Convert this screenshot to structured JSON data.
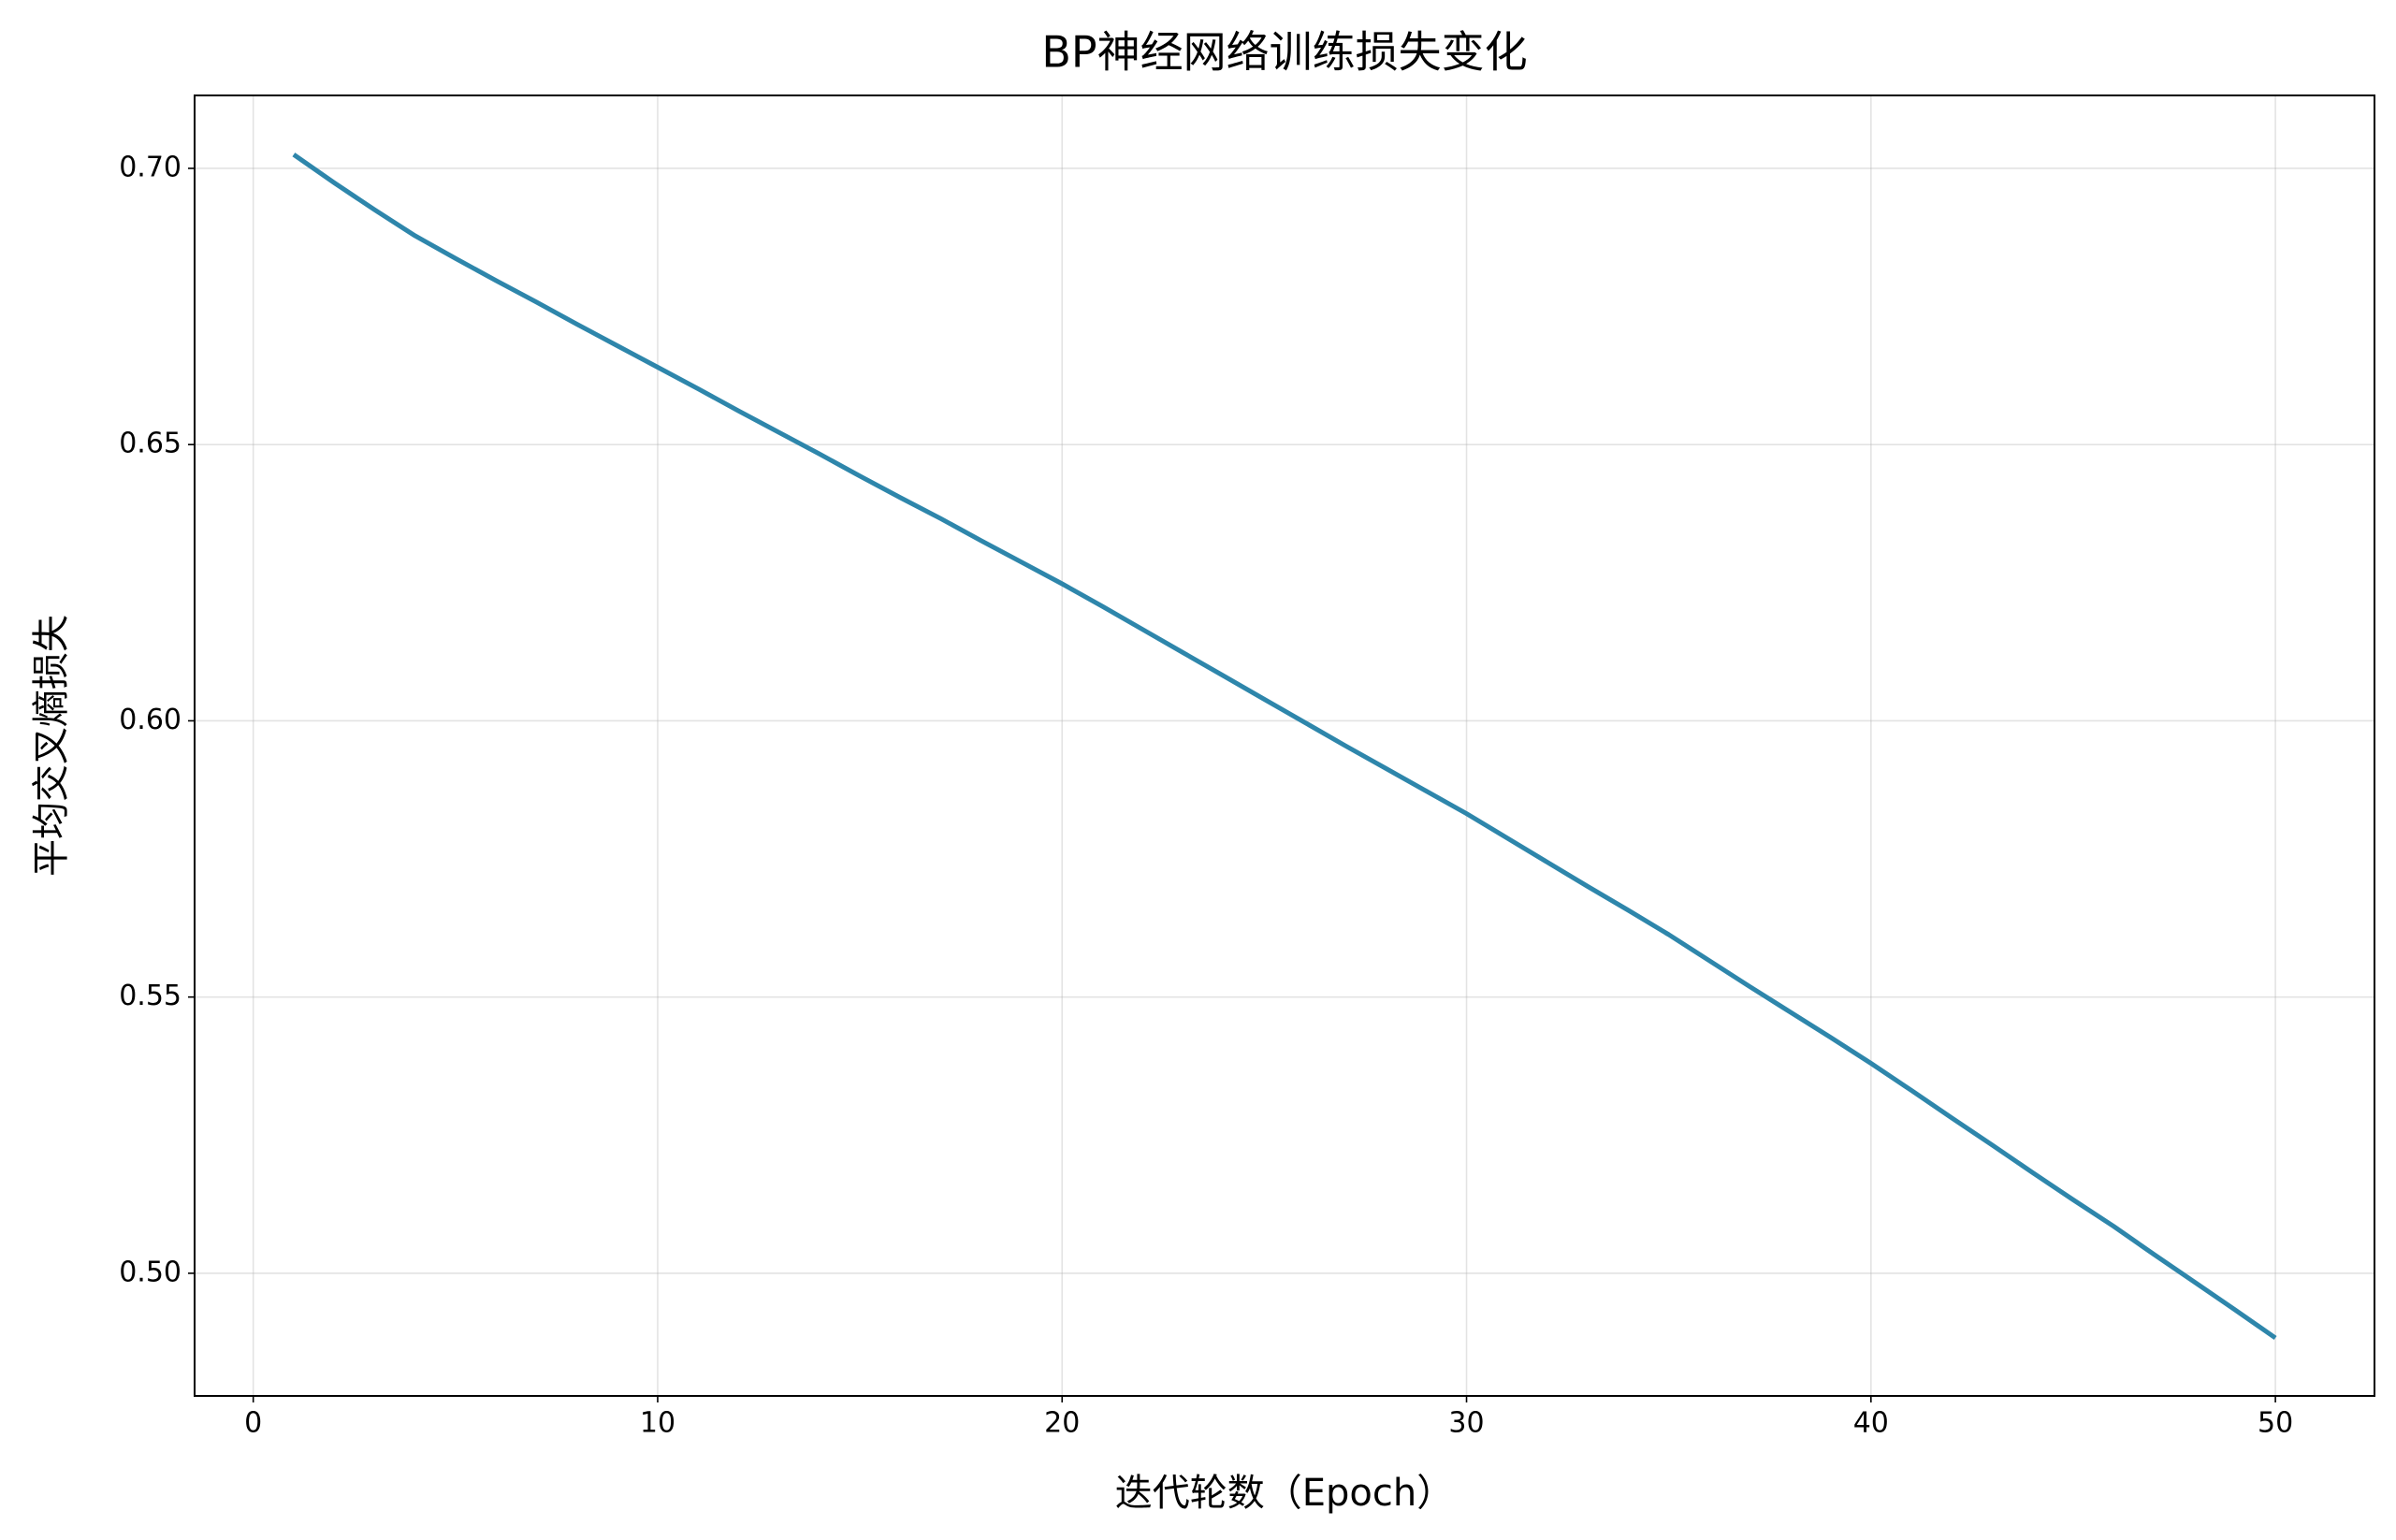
{
  "chart_data": {
    "type": "line",
    "title": "BP神经网络训练损失变化",
    "x_label": "迭代轮数（Epoch）",
    "y_label": "平均交叉熵损失",
    "x": [
      1,
      2,
      3,
      4,
      5,
      6,
      7,
      8,
      9,
      10,
      11,
      12,
      13,
      14,
      15,
      16,
      17,
      18,
      19,
      20,
      21,
      22,
      23,
      24,
      25,
      26,
      27,
      28,
      29,
      30,
      31,
      32,
      33,
      34,
      35,
      36,
      37,
      38,
      39,
      40,
      41,
      42,
      43,
      44,
      45,
      46,
      47,
      48,
      49,
      50
    ],
    "series": [
      {
        "color": "#2e86ab",
        "values": [
          0.7025,
          0.6974,
          0.6925,
          0.6878,
          0.6837,
          0.6797,
          0.6758,
          0.6718,
          0.6679,
          0.664,
          0.6601,
          0.6561,
          0.6522,
          0.6483,
          0.6443,
          0.6404,
          0.6366,
          0.6326,
          0.6287,
          0.6248,
          0.6207,
          0.6165,
          0.6123,
          0.6081,
          0.6039,
          0.5997,
          0.5955,
          0.5914,
          0.5873,
          0.5832,
          0.5788,
          0.5744,
          0.57,
          0.5657,
          0.5613,
          0.5566,
          0.5519,
          0.5473,
          0.5427,
          0.538,
          0.5331,
          0.5281,
          0.5232,
          0.5182,
          0.5133,
          0.5085,
          0.5034,
          0.4984,
          0.4934,
          0.4883
        ]
      }
    ],
    "xlim": [
      -1.45,
      52.45
    ],
    "xticks": [
      0,
      10,
      20,
      30,
      40,
      50
    ],
    "ylim": [
      0.4778,
      0.7132
    ],
    "yticks": [
      {
        "value": 0.5,
        "label": "0.50"
      },
      0.55,
      {
        "value": 0.6,
        "label": "0.60"
      },
      0.65,
      {
        "value": 0.7,
        "label": "0.70"
      }
    ],
    "grid": true
  }
}
